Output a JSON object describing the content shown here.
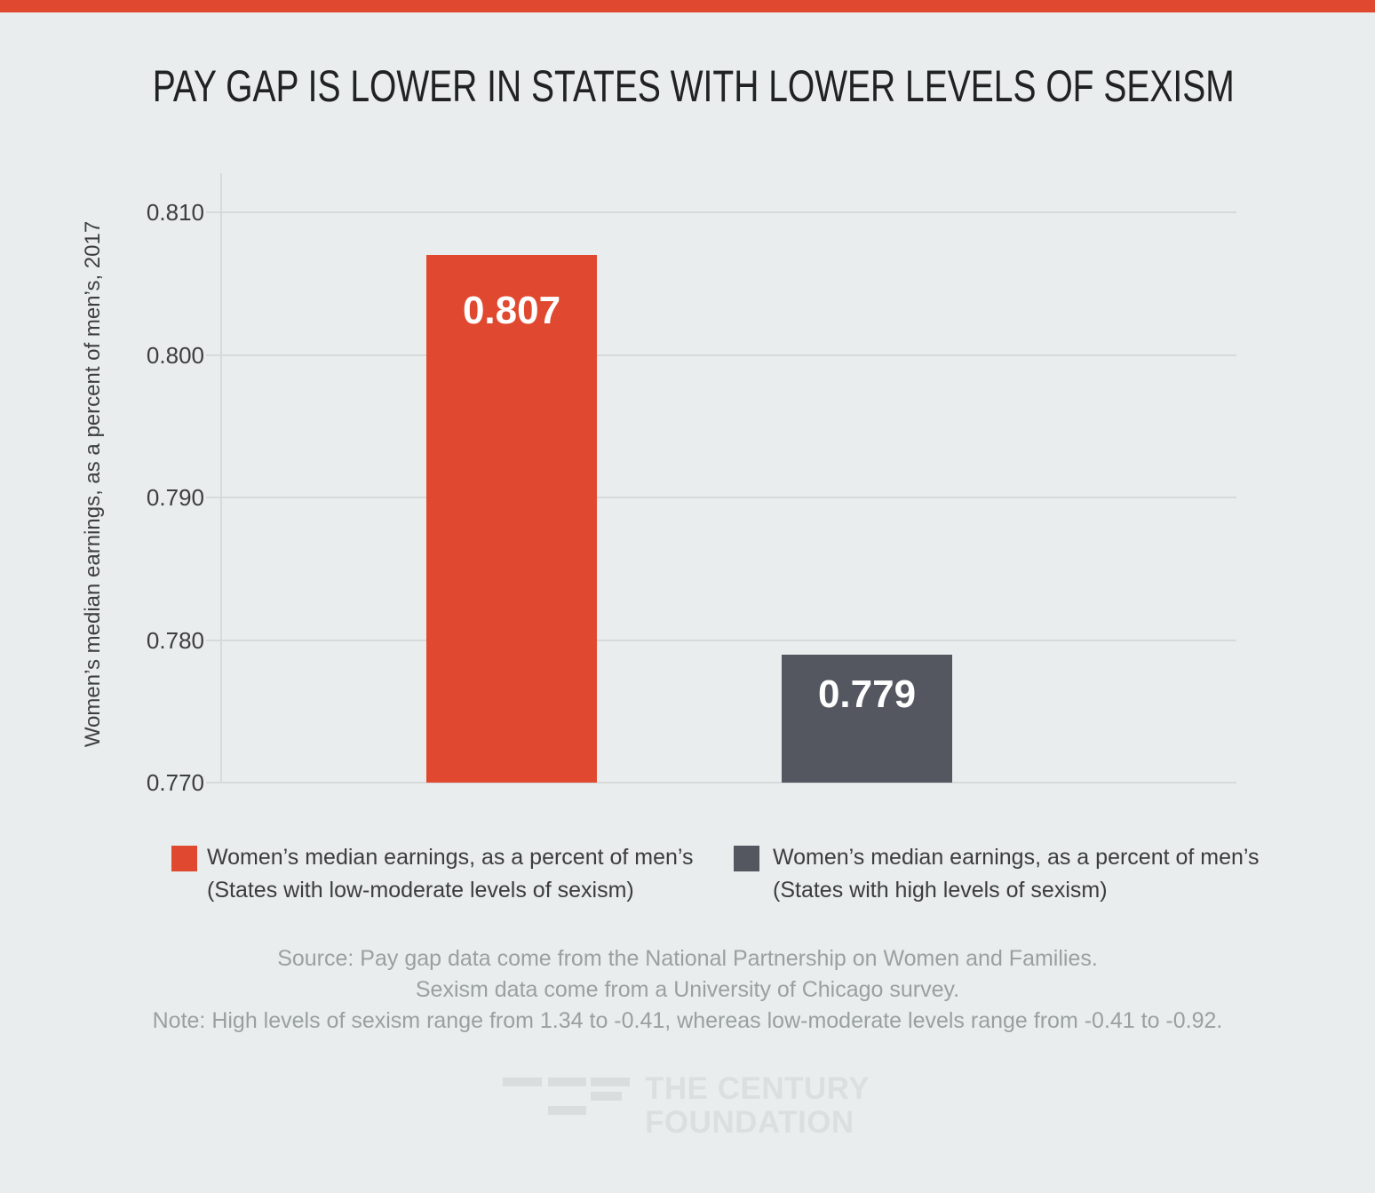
{
  "page": {
    "background_color": "#e9eded",
    "accent_bar_color": "#e0492f"
  },
  "title": "PAY GAP IS LOWER IN STATES WITH LOWER LEVELS OF SEXISM",
  "chart_data": {
    "type": "bar",
    "title": "PAY GAP IS LOWER IN STATES WITH LOWER LEVELS OF SEXISM",
    "xlabel": "",
    "ylabel": "Women’s median earnings, as a percent of men’s, 2017",
    "categories": [
      "States with low-moderate levels of sexism",
      "States with high levels of sexism"
    ],
    "values": [
      0.807,
      0.779
    ],
    "value_labels": [
      "0.807",
      "0.779"
    ],
    "value_label_color": "#ffffff",
    "bar_colors": [
      "#e0492f",
      "#54575f"
    ],
    "yticks": [
      0.81,
      0.8,
      0.79,
      0.78,
      0.77
    ],
    "ytick_labels": [
      "0.810",
      "0.800",
      "0.790",
      "0.780",
      "0.770"
    ],
    "ylim": [
      0.77,
      0.8135
    ],
    "grid": true,
    "gridline_color": "#d6dada",
    "legend_position": "bottom"
  },
  "legend": [
    {
      "swatch_color": "#e0492f",
      "line1": "Women’s median earnings, as a percent of men’s",
      "line2": "(States with low-moderate levels of sexism)"
    },
    {
      "swatch_color": "#54575f",
      "line1": "Women’s median earnings, as a percent of men’s",
      "line2": "(States with high levels of sexism)"
    }
  ],
  "notes": {
    "source_line1": "Source: Pay gap data come from the National Partnership on Women and Families.",
    "source_line2": "Sexism data come from a University of Chicago survey.",
    "note_line": "Note: High levels of sexism range from 1.34 to -0.41, whereas low-moderate levels range from -0.41 to -0.92."
  },
  "logo": {
    "line1": "THE CENTURY",
    "line2": "FOUNDATION"
  }
}
